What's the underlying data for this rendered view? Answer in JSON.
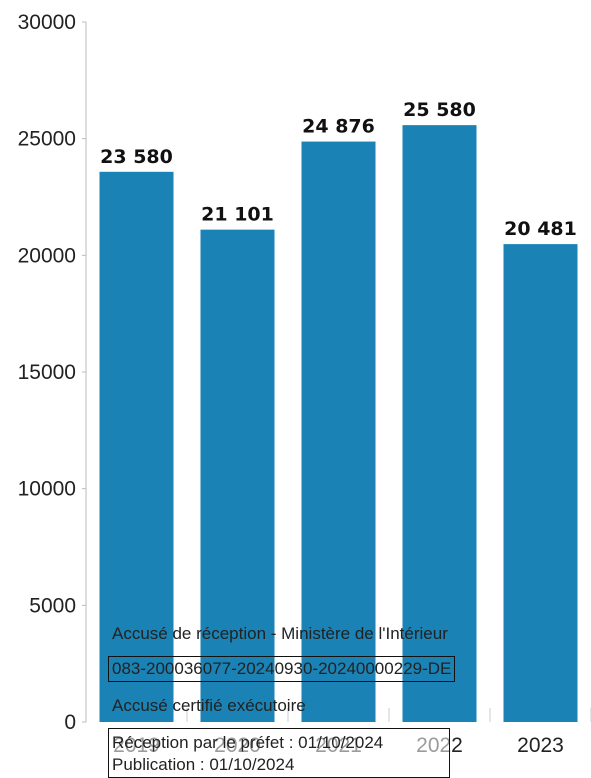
{
  "chart_data": {
    "type": "bar",
    "categories": [
      "2019",
      "2020",
      "2021",
      "2022",
      "2023"
    ],
    "values": [
      23580,
      21101,
      24876,
      25580,
      20481
    ],
    "value_labels": [
      "23 580",
      "21 101",
      "24 876",
      "25 580",
      "20 481"
    ],
    "y_ticks": [
      "0",
      "5000",
      "10000",
      "15000",
      "20000",
      "25000",
      "30000"
    ],
    "ylim": [
      0,
      30000
    ],
    "title": "",
    "xlabel": "",
    "ylabel": "",
    "grid": false,
    "bar_color": "#1a82b4"
  },
  "stamp": {
    "line1": "Accusé de réception - Ministère de l'Intérieur",
    "id": "083-200036077-20240930-20240000229-DE",
    "line3": "Accusé certifié exécutoire",
    "reception": "Réception par le préfet : 01/10/2024",
    "publication": "Publication : 01/10/2024"
  }
}
